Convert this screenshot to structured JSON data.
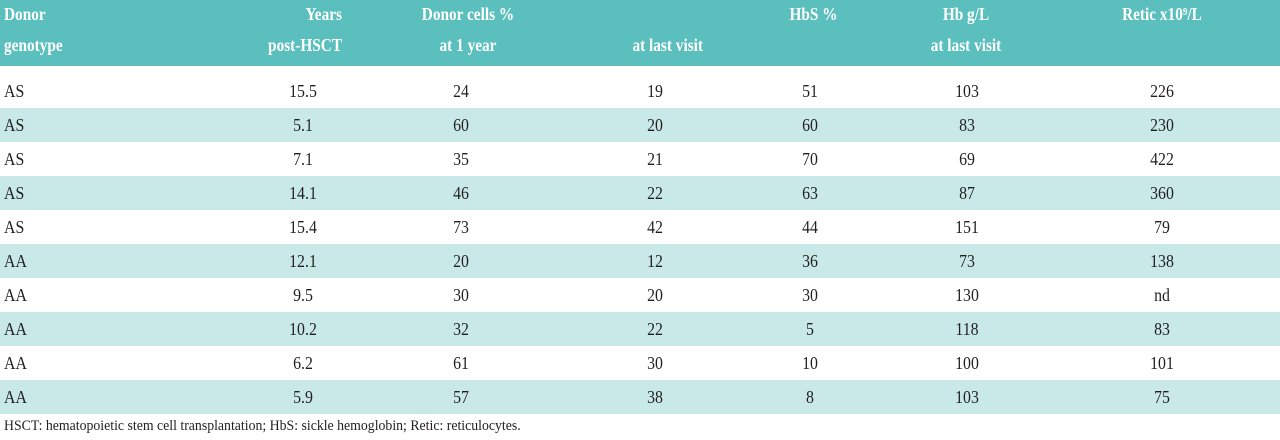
{
  "table": {
    "header": [
      [
        "Donor",
        "genotype"
      ],
      [
        "Years",
        "post-HSCT"
      ],
      [
        "Donor cells %",
        "at 1 year"
      ],
      [
        "at last visit"
      ],
      [
        "HbS %"
      ],
      [
        "Hb g/L",
        "at last visit"
      ],
      [
        "Retic x10⁹/L"
      ]
    ],
    "rows": [
      [
        "AS",
        "15.5",
        "24",
        "19",
        "51",
        "103",
        "226"
      ],
      [
        "AS",
        "5.1",
        "60",
        "20",
        "60",
        "83",
        "230"
      ],
      [
        "AS",
        "7.1",
        "35",
        "21",
        "70",
        "69",
        "422"
      ],
      [
        "AS",
        "14.1",
        "46",
        "22",
        "63",
        "87",
        "360"
      ],
      [
        "AS",
        "15.4",
        "73",
        "42",
        "44",
        "151",
        "79"
      ],
      [
        "AA",
        "12.1",
        "20",
        "12",
        "36",
        "73",
        "138"
      ],
      [
        "AA",
        "9.5",
        "30",
        "20",
        "30",
        "130",
        "nd"
      ],
      [
        "AA",
        "10.2",
        "32",
        "22",
        "5",
        "118",
        "83"
      ],
      [
        "AA",
        "6.2",
        "61",
        "30",
        "10",
        "100",
        "101"
      ],
      [
        "AA",
        "5.9",
        "57",
        "38",
        "8",
        "103",
        "75"
      ]
    ]
  },
  "footnote": "HSCT: hematopoietic stem cell transplantation; HbS: sickle hemoglobin; Retic: reticulocytes."
}
